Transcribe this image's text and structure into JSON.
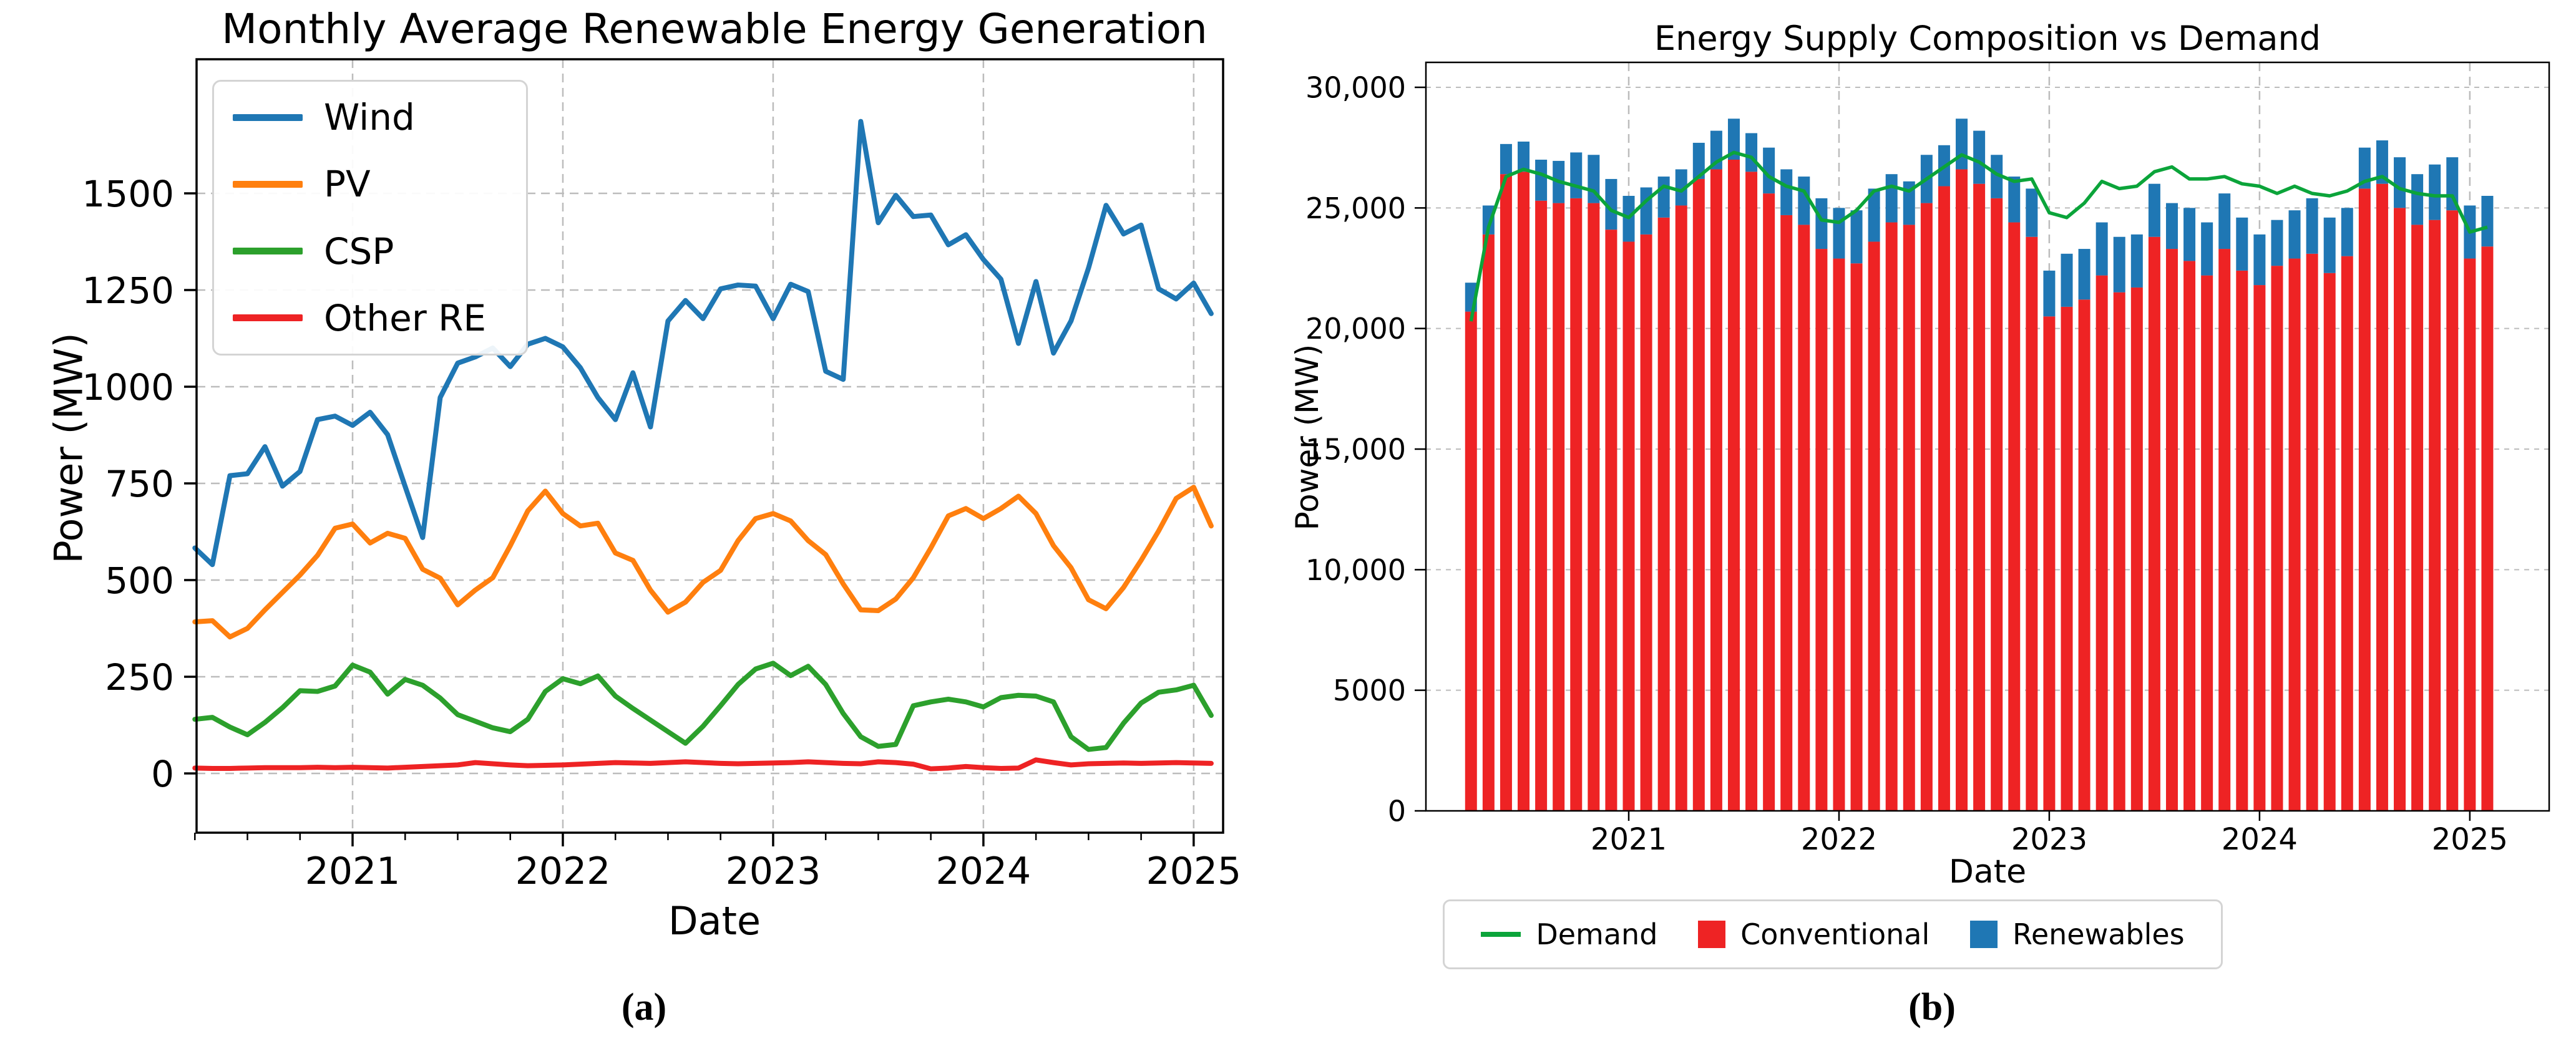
{
  "captions": {
    "a": "(a)",
    "b": "(b)"
  },
  "colors": {
    "wind": "#1f77b4",
    "pv": "#ff7f0e",
    "csp": "#2ca02c",
    "other_re": "#ee2324",
    "demand": "#0ba43a",
    "conventional": "#ee2324",
    "renewables": "#1f77b4",
    "grid": "#bcbcbc",
    "axis": "#000000"
  },
  "months": [
    "2020-04",
    "2020-05",
    "2020-06",
    "2020-07",
    "2020-08",
    "2020-09",
    "2020-10",
    "2020-11",
    "2020-12",
    "2021-01",
    "2021-02",
    "2021-03",
    "2021-04",
    "2021-05",
    "2021-06",
    "2021-07",
    "2021-08",
    "2021-09",
    "2021-10",
    "2021-11",
    "2021-12",
    "2022-01",
    "2022-02",
    "2022-03",
    "2022-04",
    "2022-05",
    "2022-06",
    "2022-07",
    "2022-08",
    "2022-09",
    "2022-10",
    "2022-11",
    "2022-12",
    "2023-01",
    "2023-02",
    "2023-03",
    "2023-04",
    "2023-05",
    "2023-06",
    "2023-07",
    "2023-08",
    "2023-09",
    "2023-10",
    "2023-11",
    "2023-12",
    "2024-01",
    "2024-02",
    "2024-03",
    "2024-04",
    "2024-05",
    "2024-06",
    "2024-07",
    "2024-08",
    "2024-09",
    "2024-10",
    "2024-11",
    "2024-12",
    "2025-01",
    "2025-02"
  ],
  "chart_data": [
    {
      "type": "line",
      "title": "Monthly Average Renewable Energy Generation",
      "xlabel": "Date",
      "ylabel": "Power (MW)",
      "x_unit": "month",
      "x_start": "2020-04",
      "x_end": "2025-02",
      "ylim": [
        0,
        1700
      ],
      "yticks": [
        0,
        250,
        500,
        750,
        1000,
        1250,
        1500
      ],
      "ytick_labels": [
        "0",
        "250",
        "500",
        "750",
        "1000",
        "1250",
        "1500"
      ],
      "xtick_labels": [
        "2021",
        "2022",
        "2023",
        "2024",
        "2025"
      ],
      "grid": true,
      "legend_position": "upper left",
      "series": [
        {
          "name": "Wind",
          "color": "#1f77b4",
          "values": [
            583,
            540,
            770,
            775,
            845,
            743,
            781,
            915,
            924,
            900,
            934,
            876,
            742,
            610,
            972,
            1061,
            1077,
            1100,
            1052,
            1110,
            1125,
            1103,
            1049,
            972,
            915,
            1036,
            896,
            1170,
            1223,
            1176,
            1253,
            1263,
            1260,
            1176,
            1265,
            1246,
            1040,
            1019,
            1686,
            1424,
            1495,
            1440,
            1444,
            1367,
            1393,
            1329,
            1278,
            1112,
            1272,
            1087,
            1170,
            1307,
            1469,
            1395,
            1418,
            1253,
            1227,
            1268,
            1189
          ]
        },
        {
          "name": "PV",
          "color": "#ff7f0e",
          "values": [
            392,
            395,
            353,
            375,
            423,
            468,
            513,
            564,
            634,
            645,
            596,
            621,
            608,
            528,
            505,
            436,
            474,
            506,
            589,
            679,
            730,
            672,
            640,
            647,
            570,
            551,
            474,
            417,
            443,
            494,
            525,
            602,
            659,
            672,
            653,
            602,
            566,
            490,
            423,
            421,
            451,
            506,
            583,
            666,
            685,
            659,
            685,
            717,
            672,
            589,
            532,
            449,
            426,
            481,
            551,
            627,
            711,
            740,
            640
          ]
        },
        {
          "name": "CSP",
          "color": "#2ca02c",
          "values": [
            140,
            145,
            120,
            100,
            132,
            170,
            214,
            212,
            226,
            280,
            262,
            205,
            243,
            228,
            195,
            152,
            135,
            118,
            108,
            140,
            212,
            245,
            232,
            252,
            200,
            168,
            138,
            108,
            78,
            122,
            175,
            230,
            270,
            285,
            253,
            277,
            230,
            155,
            95,
            70,
            75,
            175,
            185,
            192,
            185,
            172,
            196,
            202,
            200,
            185,
            95,
            62,
            67,
            130,
            182,
            210,
            216,
            228,
            150
          ]
        },
        {
          "name": "Other RE",
          "color": "#ee2324",
          "values": [
            14,
            13,
            13,
            14,
            15,
            15,
            15,
            16,
            15,
            16,
            15,
            14,
            16,
            18,
            20,
            22,
            28,
            25,
            22,
            20,
            21,
            22,
            24,
            26,
            28,
            27,
            26,
            28,
            30,
            28,
            26,
            25,
            26,
            27,
            28,
            30,
            28,
            26,
            25,
            30,
            28,
            24,
            12,
            14,
            18,
            15,
            13,
            14,
            35,
            28,
            22,
            25,
            26,
            27,
            26,
            27,
            28,
            27,
            26
          ]
        }
      ]
    },
    {
      "type": "bar",
      "title": "Energy Supply Composition vs Demand",
      "xlabel": "Date",
      "ylabel": "Power (MW)",
      "x_unit": "month",
      "x_start": "2020-04",
      "x_end": "2025-02",
      "ylim": [
        0,
        30000
      ],
      "yticks": [
        0,
        5000,
        10000,
        15000,
        20000,
        25000,
        30000
      ],
      "ytick_labels": [
        "0",
        "5000",
        "10,000",
        "15,000",
        "20,000",
        "25,000",
        "30,000"
      ],
      "xtick_labels": [
        "2021",
        "2022",
        "2023",
        "2024",
        "2025"
      ],
      "grid": true,
      "legend_position": "below",
      "stacked": true,
      "series": [
        {
          "name": "Demand",
          "render": "line",
          "color": "#0ba43a",
          "values": [
            20300,
            24200,
            26300,
            26600,
            26400,
            26100,
            25900,
            25700,
            24900,
            24600,
            25300,
            25900,
            25700,
            26300,
            26900,
            27300,
            27100,
            26300,
            25900,
            25700,
            24500,
            24400,
            24900,
            25700,
            25900,
            25700,
            26200,
            26700,
            27200,
            26900,
            26400,
            26100,
            26200,
            24800,
            24600,
            25200,
            26100,
            25800,
            25900,
            26500,
            26700,
            26200,
            26200,
            26300,
            26000,
            25900,
            25600,
            25900,
            25600,
            25500,
            25700,
            26100,
            26300,
            25800,
            25600,
            25500,
            25500,
            24000,
            24200
          ]
        },
        {
          "name": "Conventional",
          "render": "bar",
          "color": "#ee2324",
          "values": [
            20700,
            23900,
            26400,
            26500,
            25300,
            25200,
            25400,
            25200,
            24100,
            23600,
            23900,
            24600,
            25100,
            26200,
            26600,
            27000,
            26500,
            25600,
            24700,
            24300,
            23300,
            22900,
            22700,
            23600,
            24400,
            24300,
            25200,
            25900,
            26600,
            26000,
            25400,
            24400,
            23800,
            20500,
            20900,
            21200,
            22200,
            21500,
            21700,
            23800,
            23300,
            22800,
            22200,
            23300,
            22400,
            21800,
            22600,
            22900,
            23100,
            22300,
            23000,
            25800,
            26000,
            25000,
            24300,
            24500,
            24900,
            22900,
            23400
          ]
        },
        {
          "name": "Renewables",
          "render": "bar",
          "stacked_on": "Conventional",
          "color": "#1f77b4",
          "values": [
            1200,
            1200,
            1250,
            1250,
            1700,
            1750,
            1900,
            2000,
            2100,
            1900,
            1950,
            1700,
            1500,
            1500,
            1600,
            1700,
            1600,
            1900,
            1900,
            2000,
            2100,
            2100,
            2200,
            2200,
            2000,
            1800,
            2000,
            1700,
            2100,
            2200,
            1800,
            1900,
            2000,
            1900,
            2200,
            2100,
            2200,
            2300,
            2200,
            2200,
            1900,
            2200,
            2200,
            2300,
            2200,
            2100,
            1900,
            2000,
            2300,
            2300,
            2000,
            1700,
            1800,
            2100,
            2100,
            2300,
            2200,
            2200,
            2100
          ]
        }
      ]
    }
  ]
}
